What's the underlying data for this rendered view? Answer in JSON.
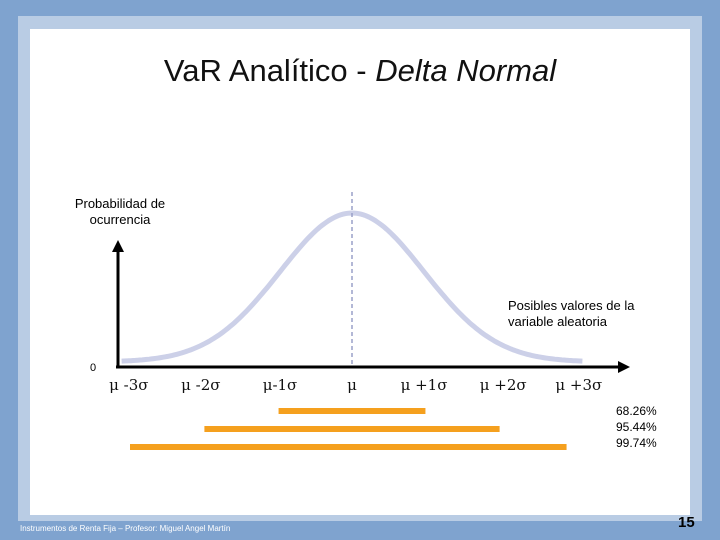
{
  "slide": {
    "title_plain": "Va",
    "title_plain2": "R Analítico - ",
    "title_italic": "Delta Normal",
    "y_axis_label_line1": "Probabilidad de",
    "y_axis_label_line2": "ocurrencia",
    "x_axis_label_line1": "Posibles valores de la",
    "x_axis_label_line2": "variable aleatoria",
    "origin_label": "0",
    "footer": "Instrumentos de Renta Fija – Profesor: Miguel Angel Martín",
    "page_number": "15"
  },
  "chart_data": {
    "type": "line",
    "description_free": true,
    "x_tick_labels": [
      "μ -3σ",
      "μ -2σ",
      "μ-1σ",
      "μ",
      "μ +1σ",
      "μ +2σ",
      "μ +3σ"
    ],
    "x": [
      -3,
      -2,
      -1,
      0,
      1,
      2,
      3
    ],
    "curve": "normal density",
    "mean_marker": 0,
    "intervals": [
      {
        "label": "68.26%",
        "from": -1,
        "to": 1,
        "color": "#f5a01e"
      },
      {
        "label": "95.44%",
        "from": -2,
        "to": 2,
        "color": "#f5a01e"
      },
      {
        "label": "99.74%",
        "from": -3,
        "to": 3,
        "color": "#f5a01e"
      }
    ],
    "colors": {
      "curve": "#ccd0e8",
      "axis": "#000000",
      "mean_line": "#9aa0c8"
    }
  }
}
